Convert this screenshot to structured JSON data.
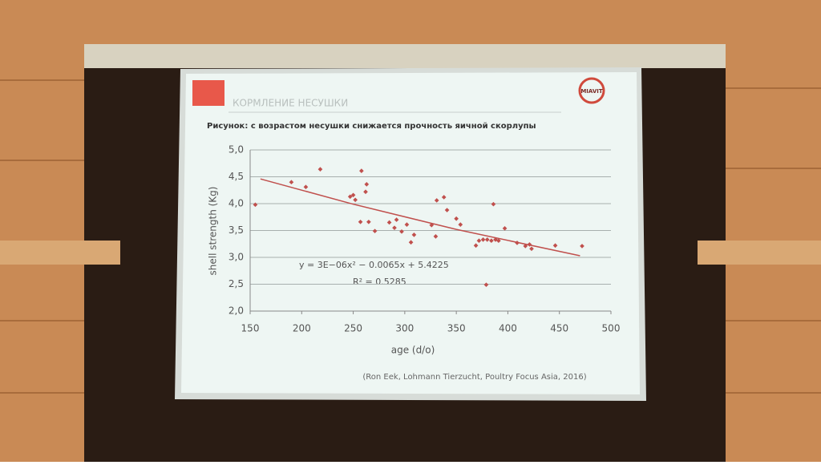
{
  "slide": {
    "section": "КОРМЛЕНИЕ НЕСУШКИ",
    "logo": "MIAVIT",
    "source": "(Ron Eek, Lohmann Tierzucht, Poultry Focus Asia, 2016)"
  },
  "chart_data": {
    "type": "scatter",
    "title": "Рисунок: с возрастом несушки снижается прочность яичной скорлупы",
    "x_label": "age (d/o)",
    "y_label": "shell strength (Kg)",
    "annotations": [
      "y = 3E−06x² − 0.0065x + 5.4225",
      "R² = 0.5285"
    ],
    "x": [
      155,
      190,
      204,
      218,
      247,
      250,
      252,
      258,
      263,
      262,
      257,
      265,
      271,
      285,
      290,
      292,
      297,
      302,
      306,
      309,
      326,
      330,
      331,
      338,
      341,
      350,
      354,
      369,
      372,
      376,
      380,
      384,
      388,
      391,
      386,
      379,
      397,
      409,
      417,
      421,
      423,
      446,
      472
    ],
    "values": [
      3.98,
      4.4,
      4.31,
      4.64,
      4.13,
      4.16,
      4.07,
      4.61,
      4.36,
      4.22,
      3.66,
      3.66,
      3.49,
      3.65,
      3.55,
      3.7,
      3.48,
      3.61,
      3.28,
      3.42,
      3.6,
      3.39,
      4.06,
      4.12,
      3.88,
      3.72,
      3.61,
      3.22,
      3.31,
      3.33,
      3.33,
      3.31,
      3.33,
      3.31,
      3.99,
      2.49,
      3.54,
      3.27,
      3.21,
      3.24,
      3.16,
      3.22,
      3.21
    ],
    "color": "#c0504d",
    "trendline": {
      "x": [
        160,
        250,
        350,
        470
      ],
      "values": [
        4.46,
        3.99,
        3.52,
        3.03
      ],
      "color": "#c0504d"
    },
    "xlim": [
      150,
      500
    ],
    "xticks": [
      150,
      200,
      250,
      300,
      350,
      400,
      450,
      500
    ],
    "ylim": [
      2.0,
      5.0
    ],
    "yticks": [
      {
        "value": 2.0,
        "label": "2,0"
      },
      {
        "value": 2.5,
        "label": "2,5"
      },
      {
        "value": 3.0,
        "label": "3,0"
      },
      {
        "value": 3.5,
        "label": "3,5"
      },
      {
        "value": 4.0,
        "label": "4,0"
      },
      {
        "value": 4.5,
        "label": "4,5"
      },
      {
        "value": 5.0,
        "label": "5,0"
      }
    ],
    "grid": true
  }
}
